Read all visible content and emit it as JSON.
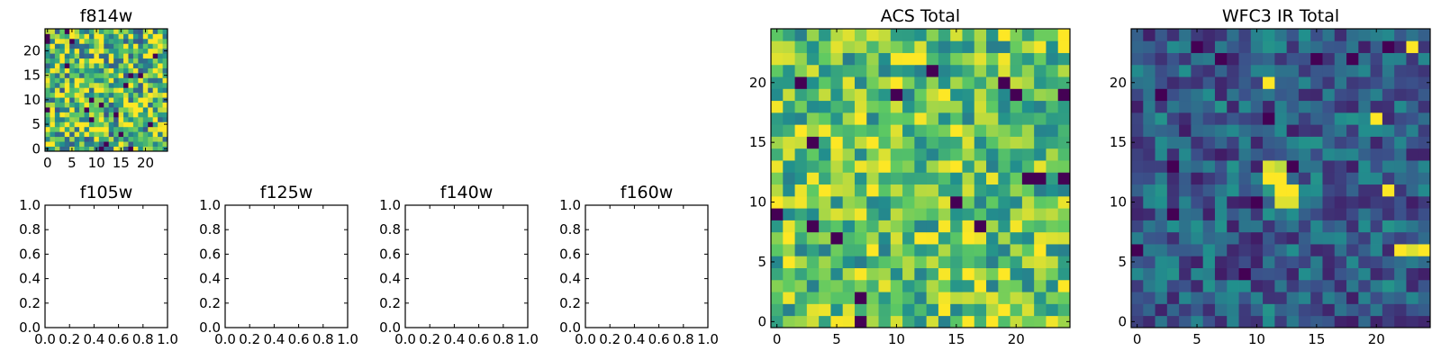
{
  "figure": {
    "background": "#ffffff",
    "colormap": [
      "#440154",
      "#3b528b",
      "#21908d",
      "#5dc963",
      "#fde725"
    ]
  },
  "chart_data": [
    {
      "type": "heatmap",
      "id": "f814w",
      "title": "f814w",
      "grid_size": 25,
      "xlim": [
        -0.5,
        24.5
      ],
      "ylim": [
        -0.5,
        24.5
      ],
      "xticks": [
        0,
        5,
        10,
        15,
        20
      ],
      "xtick_labels": [
        "0",
        "5",
        "10",
        "15",
        "20"
      ],
      "yticks": [
        0,
        5,
        10,
        15,
        20
      ],
      "ytick_labels": [
        "0",
        "5",
        "10",
        "15",
        "20"
      ],
      "field": {
        "seed": 11,
        "mean": 0.68,
        "spread": 0.42,
        "outlier_rate": 0.05,
        "hotspots": []
      }
    },
    {
      "type": "heatmap",
      "id": "f105w",
      "title": "f105w",
      "empty": true,
      "xlim": [
        0.0,
        1.0
      ],
      "ylim": [
        0.0,
        1.0
      ],
      "xticks": [
        0.0,
        0.2,
        0.4,
        0.6,
        0.8,
        1.0
      ],
      "xtick_labels": [
        "0.0",
        "0.2",
        "0.4",
        "0.6",
        "0.8",
        "1.0"
      ],
      "yticks": [
        0.0,
        0.2,
        0.4,
        0.6,
        0.8,
        1.0
      ],
      "ytick_labels": [
        "0.0",
        "0.2",
        "0.4",
        "0.6",
        "0.8",
        "1.0"
      ]
    },
    {
      "type": "heatmap",
      "id": "f125w",
      "title": "f125w",
      "empty": true,
      "xlim": [
        0.0,
        1.0
      ],
      "ylim": [
        0.0,
        1.0
      ],
      "xticks": [
        0.0,
        0.2,
        0.4,
        0.6,
        0.8,
        1.0
      ],
      "xtick_labels": [
        "0.0",
        "0.2",
        "0.4",
        "0.6",
        "0.8",
        "1.0"
      ],
      "yticks": [
        0.0,
        0.2,
        0.4,
        0.6,
        0.8,
        1.0
      ],
      "ytick_labels": [
        "0.0",
        "0.2",
        "0.4",
        "0.6",
        "0.8",
        "1.0"
      ]
    },
    {
      "type": "heatmap",
      "id": "f140w",
      "title": "f140w",
      "empty": true,
      "xlim": [
        0.0,
        1.0
      ],
      "ylim": [
        0.0,
        1.0
      ],
      "xticks": [
        0.0,
        0.2,
        0.4,
        0.6,
        0.8,
        1.0
      ],
      "xtick_labels": [
        "0.0",
        "0.2",
        "0.4",
        "0.6",
        "0.8",
        "1.0"
      ],
      "yticks": [
        0.0,
        0.2,
        0.4,
        0.6,
        0.8,
        1.0
      ],
      "ytick_labels": [
        "0.0",
        "0.2",
        "0.4",
        "0.6",
        "0.8",
        "1.0"
      ]
    },
    {
      "type": "heatmap",
      "id": "f160w",
      "title": "f160w",
      "empty": true,
      "xlim": [
        0.0,
        1.0
      ],
      "ylim": [
        0.0,
        1.0
      ],
      "xticks": [
        0.0,
        0.2,
        0.4,
        0.6,
        0.8,
        1.0
      ],
      "xtick_labels": [
        "0.0",
        "0.2",
        "0.4",
        "0.6",
        "0.8",
        "1.0"
      ],
      "yticks": [
        0.0,
        0.2,
        0.4,
        0.6,
        0.8,
        1.0
      ],
      "ytick_labels": [
        "0.0",
        "0.2",
        "0.4",
        "0.6",
        "0.8",
        "1.0"
      ]
    },
    {
      "type": "heatmap",
      "id": "acs-total",
      "title": "ACS Total",
      "grid_size": 25,
      "xlim": [
        -0.5,
        24.5
      ],
      "ylim": [
        -0.5,
        24.5
      ],
      "xticks": [
        0,
        5,
        10,
        15,
        20
      ],
      "xtick_labels": [
        "0",
        "5",
        "10",
        "15",
        "20"
      ],
      "yticks": [
        0,
        5,
        10,
        15,
        20
      ],
      "ytick_labels": [
        "0",
        "5",
        "10",
        "15",
        "20"
      ],
      "field": {
        "seed": 29,
        "mean": 0.72,
        "spread": 0.3,
        "outlier_rate": 0.035,
        "hotspots": []
      }
    },
    {
      "type": "heatmap",
      "id": "wfc3-ir-total",
      "title": "WFC3 IR Total",
      "grid_size": 25,
      "xlim": [
        -0.5,
        24.5
      ],
      "ylim": [
        -0.5,
        24.5
      ],
      "xticks": [
        0,
        5,
        10,
        15,
        20
      ],
      "xtick_labels": [
        "0",
        "5",
        "10",
        "15",
        "20"
      ],
      "yticks": [
        0,
        5,
        10,
        15,
        20
      ],
      "ytick_labels": [
        "0",
        "5",
        "10",
        "15",
        "20"
      ],
      "field": {
        "seed": 53,
        "mean": 0.3,
        "spread": 0.22,
        "outlier_rate": 0.02,
        "hotspots": [
          {
            "x": 11,
            "y": 12,
            "value": 1.0
          },
          {
            "x": 12,
            "y": 12,
            "value": 1.0
          },
          {
            "x": 12,
            "y": 11,
            "value": 1.0
          },
          {
            "x": 13,
            "y": 11,
            "value": 1.0
          },
          {
            "x": 11,
            "y": 13,
            "value": 0.95
          },
          {
            "x": 12,
            "y": 13,
            "value": 0.9
          },
          {
            "x": 12,
            "y": 10,
            "value": 0.95
          },
          {
            "x": 13,
            "y": 10,
            "value": 0.95
          },
          {
            "x": 11,
            "y": 11,
            "value": 0.55
          },
          {
            "x": 24,
            "y": 6,
            "value": 1.0
          },
          {
            "x": 23,
            "y": 6,
            "value": 0.95
          },
          {
            "x": 0,
            "y": 6,
            "value": 0.0
          },
          {
            "x": 2,
            "y": 19,
            "value": 0.0
          },
          {
            "x": 10,
            "y": 10,
            "value": 0.0
          },
          {
            "x": 18,
            "y": 22,
            "value": 0.0
          },
          {
            "x": 11,
            "y": 17,
            "value": 0.0
          },
          {
            "x": 3,
            "y": 13,
            "value": 0.0
          }
        ]
      }
    }
  ]
}
